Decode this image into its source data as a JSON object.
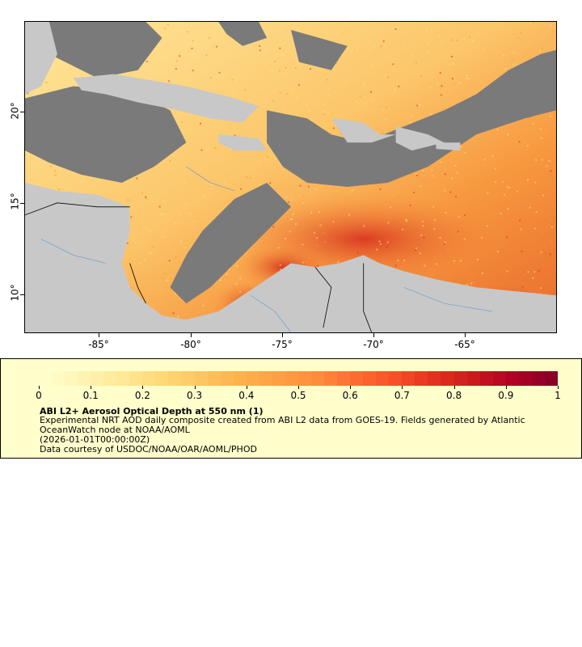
{
  "map": {
    "x_ticks": [
      "-85°",
      "-80°",
      "-75°",
      "-70°",
      "-65°"
    ],
    "y_ticks": [
      "20°",
      "15°",
      "10°"
    ],
    "colors": {
      "land": "#c8c8c8",
      "no_data": "#7a7a7a",
      "low": "#ffeeb0",
      "mid": "#fdb248",
      "high": "#e34a24",
      "max": "#8b0026"
    }
  },
  "legend": {
    "ticks": [
      "0",
      "0.1",
      "0.2",
      "0.3",
      "0.4",
      "0.5",
      "0.6",
      "0.7",
      "0.8",
      "0.9",
      "1"
    ],
    "title": "ABI L2+ Aerosol Optical Depth at 550 nm (1)",
    "line1": "Experimental NRT AOD daily composite created from ABI L2 data from GOES-19. Fields generated by Atlantic",
    "line2": "OceanWatch node at NOAA/AOML",
    "line3": "(2026-01-01T00:00:00Z)",
    "line4": "Data courtesy of USDOC/NOAA/OAR/AOML/PHOD"
  }
}
